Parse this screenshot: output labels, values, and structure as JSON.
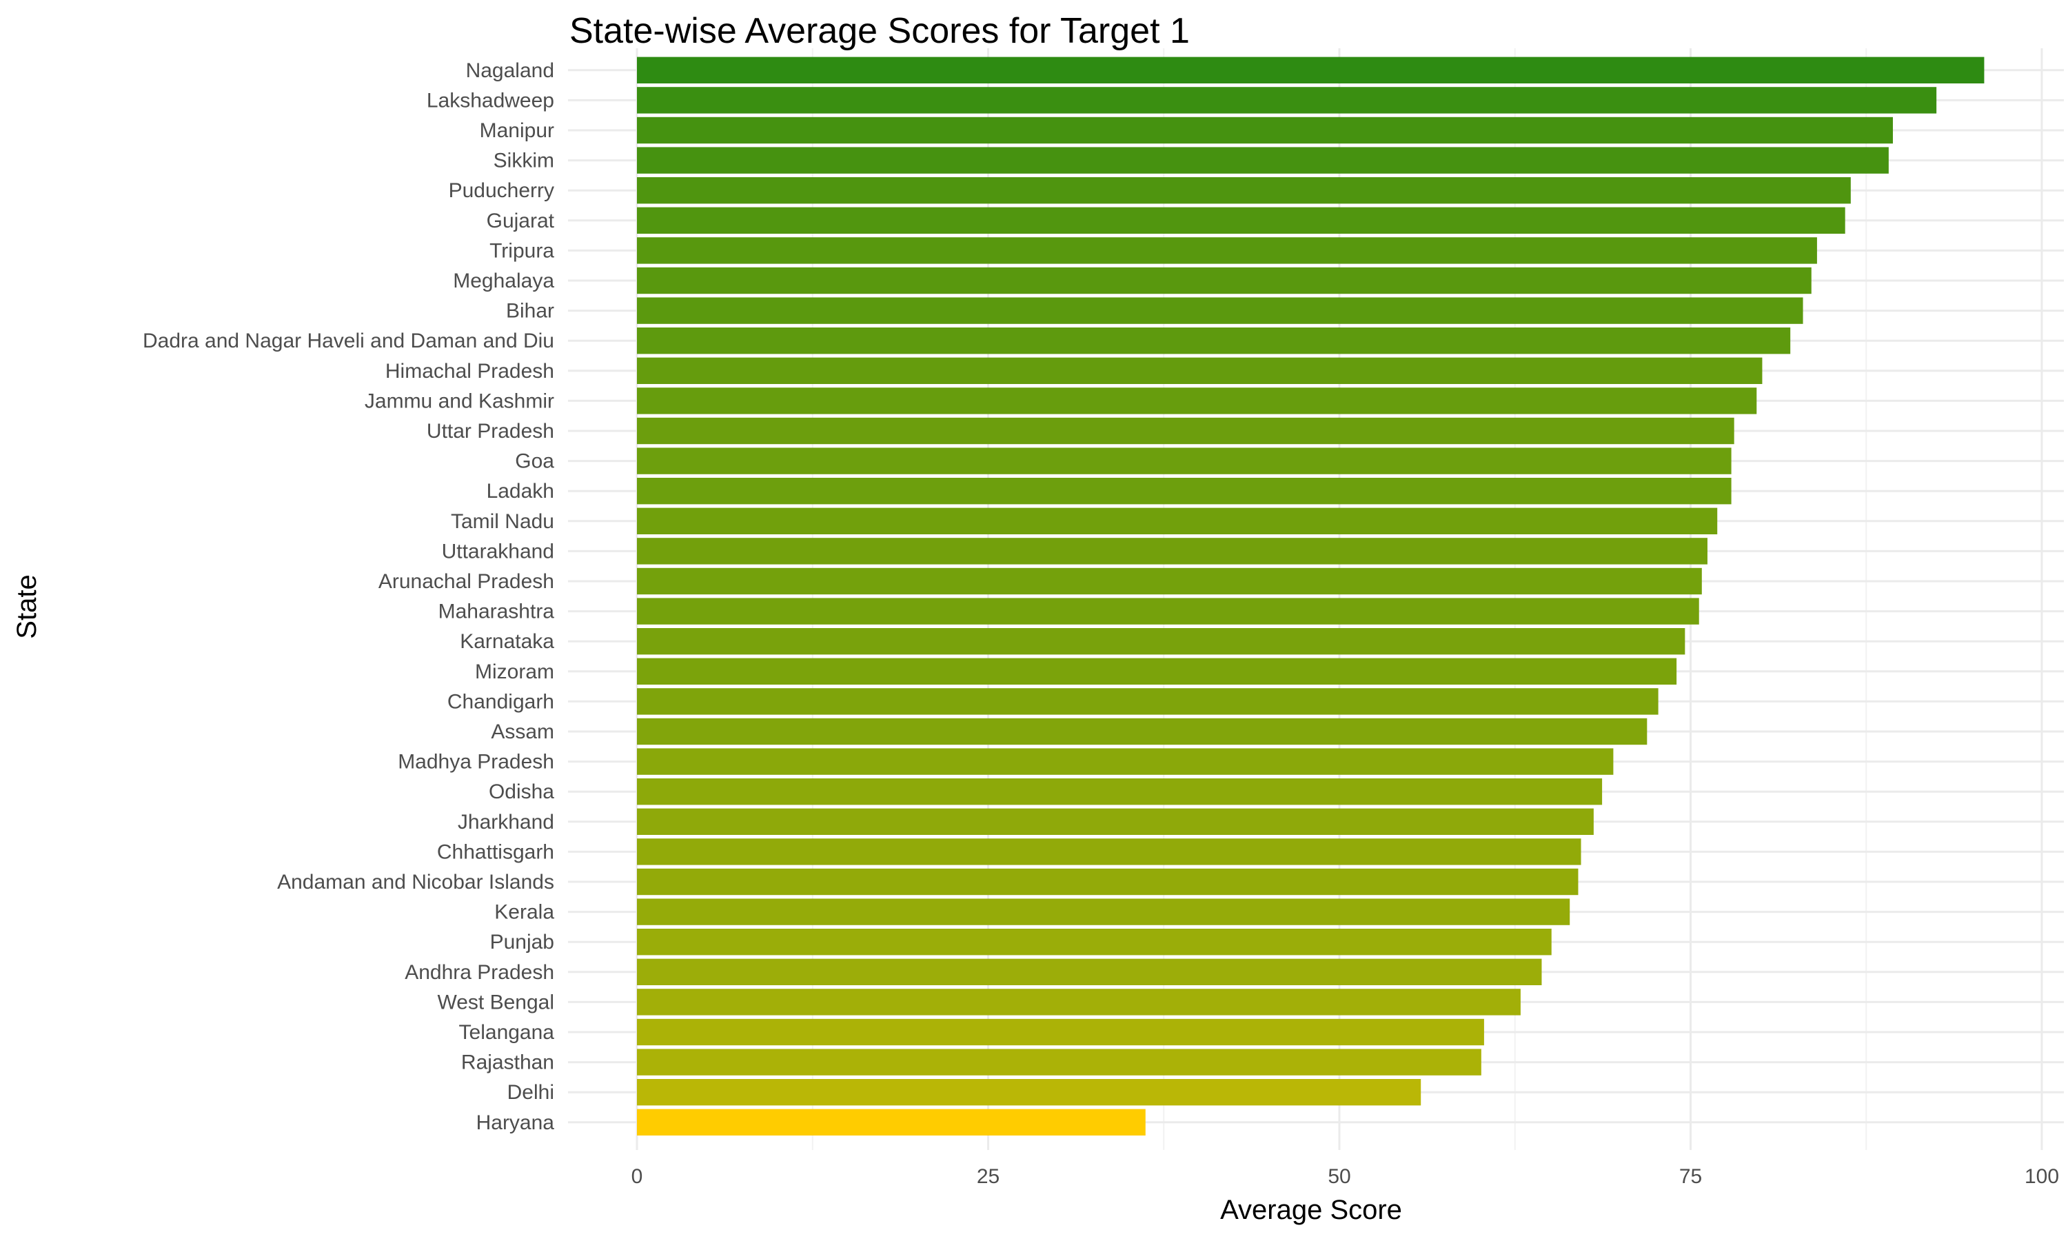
{
  "chart_data": {
    "type": "bar",
    "orientation": "horizontal",
    "title": "State-wise Average Scores for Target 1",
    "xlabel": "Average Score",
    "ylabel": "State",
    "xlim": [
      0,
      100
    ],
    "xticks": [
      0,
      25,
      50,
      75,
      100
    ],
    "grid": true,
    "legend": "none",
    "color_low": "#ffcc00",
    "color_high": "#2e8b12",
    "categories": [
      "Nagaland",
      "Lakshadweep",
      "Manipur",
      "Sikkim",
      "Puducherry",
      "Gujarat",
      "Tripura",
      "Meghalaya",
      "Bihar",
      "Dadra and Nagar Haveli and Daman and Diu",
      "Himachal Pradesh",
      "Jammu and Kashmir",
      "Uttar Pradesh",
      "Goa",
      "Ladakh",
      "Tamil Nadu",
      "Uttarakhand",
      "Arunachal Pradesh",
      "Maharashtra",
      "Karnataka",
      "Mizoram",
      "Chandigarh",
      "Assam",
      "Madhya Pradesh",
      "Odisha",
      "Jharkhand",
      "Chhattisgarh",
      "Andaman and Nicobar Islands",
      "Kerala",
      "Punjab",
      "Andhra Pradesh",
      "West Bengal",
      "Telangana",
      "Rajasthan",
      "Delhi",
      "Haryana"
    ],
    "values": [
      95.9,
      92.5,
      89.4,
      89.1,
      86.4,
      86.0,
      84.0,
      83.6,
      83.0,
      82.1,
      80.1,
      79.7,
      78.1,
      77.9,
      77.9,
      76.9,
      76.2,
      75.8,
      75.6,
      74.6,
      74.0,
      72.7,
      71.9,
      69.5,
      68.7,
      68.1,
      67.2,
      67.0,
      66.4,
      65.1,
      64.4,
      62.9,
      60.3,
      60.1,
      55.8,
      36.2
    ]
  }
}
